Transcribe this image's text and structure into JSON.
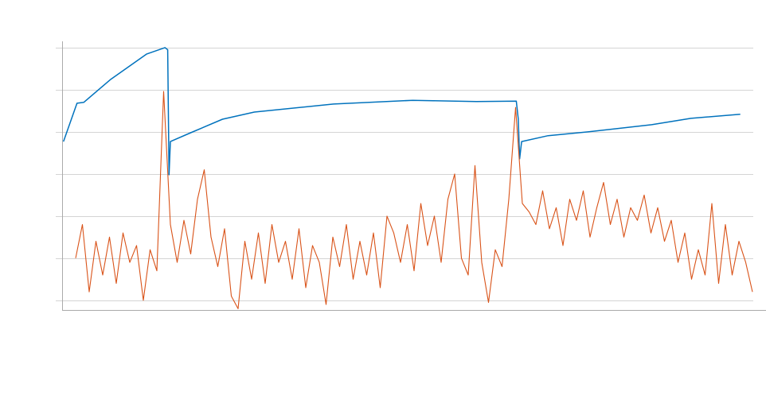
{
  "chart_data": {
    "type": "line",
    "title": "",
    "xlabel": "",
    "ylabel": "",
    "xlim": [
      -2,
      1038
    ],
    "ylim": [
      -0.23,
      6.15
    ],
    "y_gridlines": [
      0,
      1,
      2,
      3,
      4,
      5,
      6
    ],
    "grid": "horizontal",
    "tick_labels_shown": false,
    "colors": {
      "axis": "#aaaaaa",
      "grid": "#d4d4d4"
    },
    "series": [
      {
        "color": "#0072bd",
        "points": [
          [
            0,
            3.77
          ],
          [
            20,
            4.68
          ],
          [
            30,
            4.7
          ],
          [
            70,
            5.25
          ],
          [
            123,
            5.85
          ],
          [
            150,
            6.0
          ],
          [
            154,
            5.95
          ],
          [
            156,
            2.98
          ],
          [
            158,
            3.77
          ],
          [
            188,
            3.98
          ],
          [
            235,
            4.3
          ],
          [
            282,
            4.47
          ],
          [
            399,
            4.66
          ],
          [
            516,
            4.75
          ],
          [
            610,
            4.72
          ],
          [
            669,
            4.73
          ],
          [
            672,
            4.3
          ],
          [
            674,
            3.36
          ],
          [
            677,
            3.77
          ],
          [
            716,
            3.91
          ],
          [
            775,
            4.0
          ],
          [
            869,
            4.17
          ],
          [
            927,
            4.32
          ],
          [
            1000,
            4.42
          ]
        ]
      },
      {
        "color": "#d95319",
        "x_start": 18,
        "x_step": 10,
        "values": [
          1.0,
          1.8,
          0.2,
          1.4,
          0.6,
          1.5,
          0.4,
          1.6,
          0.9,
          1.3,
          0.0,
          1.2,
          0.7,
          4.96,
          1.8,
          0.9,
          1.9,
          1.1,
          2.4,
          3.1,
          1.5,
          0.8,
          1.7,
          0.1,
          -0.2,
          1.4,
          0.5,
          1.6,
          0.4,
          1.8,
          0.9,
          1.4,
          0.5,
          1.7,
          0.3,
          1.3,
          0.9,
          -0.1,
          1.5,
          0.8,
          1.8,
          0.5,
          1.4,
          0.6,
          1.6,
          0.3,
          2.0,
          1.6,
          0.9,
          1.8,
          0.7,
          2.3,
          1.3,
          2.0,
          0.9,
          2.4,
          3.0,
          1.0,
          0.6,
          3.2,
          0.9,
          -0.05,
          1.2,
          0.8,
          2.4,
          4.58,
          2.3,
          2.1,
          1.8,
          2.6,
          1.7,
          2.2,
          1.3,
          2.4,
          1.9,
          2.6,
          1.5,
          2.2,
          2.8,
          1.8,
          2.4,
          1.5,
          2.2,
          1.9,
          2.5,
          1.6,
          2.2,
          1.4,
          1.9,
          0.9,
          1.6,
          0.5,
          1.2,
          0.6,
          2.3,
          0.4,
          1.8,
          0.6,
          1.4,
          0.9,
          0.2
        ]
      }
    ]
  }
}
